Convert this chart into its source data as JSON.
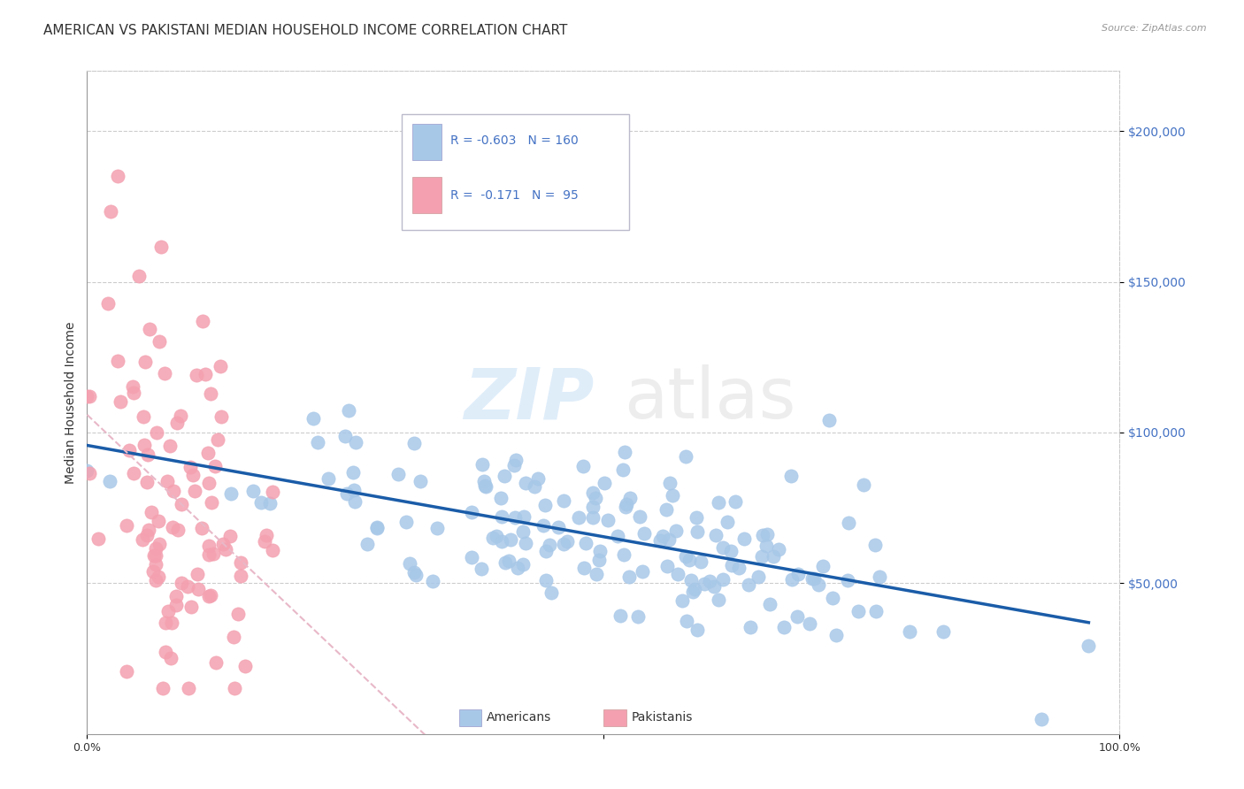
{
  "title": "AMERICAN VS PAKISTANI MEDIAN HOUSEHOLD INCOME CORRELATION CHART",
  "source": "Source: ZipAtlas.com",
  "ylabel": "Median Household Income",
  "ytick_values": [
    50000,
    100000,
    150000,
    200000
  ],
  "ymin": 0,
  "ymax": 220000,
  "xmin": 0.0,
  "xmax": 1.0,
  "watermark_zip": "ZIP",
  "watermark_atlas": "atlas",
  "americans_color": "#a8c8e8",
  "pakistanis_color": "#f4a0b0",
  "trendline_americans_color": "#1a5ca8",
  "trendline_pakistanis_color": "#e8b8c8",
  "background_color": "#ffffff",
  "seed": 42,
  "americans_n": 160,
  "pakistanis_n": 95,
  "americans_R": -0.603,
  "pakistanis_R": -0.171,
  "grid_color": "#cccccc",
  "title_fontsize": 11,
  "axis_label_fontsize": 10,
  "tick_fontsize": 9,
  "legend_color": "#4472c4"
}
